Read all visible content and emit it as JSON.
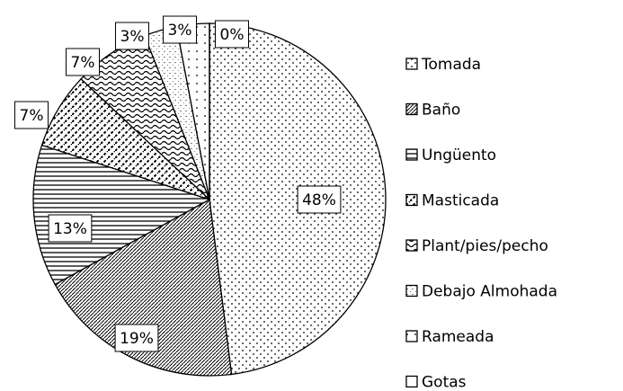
{
  "chart_data": {
    "type": "pie",
    "categories": [
      "Tomada",
      "Baño",
      "Ungüento",
      "Masticada",
      "Plant/pies/pecho",
      "Debajo Almohada",
      "Rameada",
      "Gotas"
    ],
    "values": [
      48,
      19,
      13,
      7,
      7,
      3,
      3,
      0
    ],
    "value_labels": [
      "48%",
      "19%",
      "13%",
      "7%",
      "7%",
      "3%",
      "3%",
      "0%"
    ],
    "legend": "right"
  }
}
